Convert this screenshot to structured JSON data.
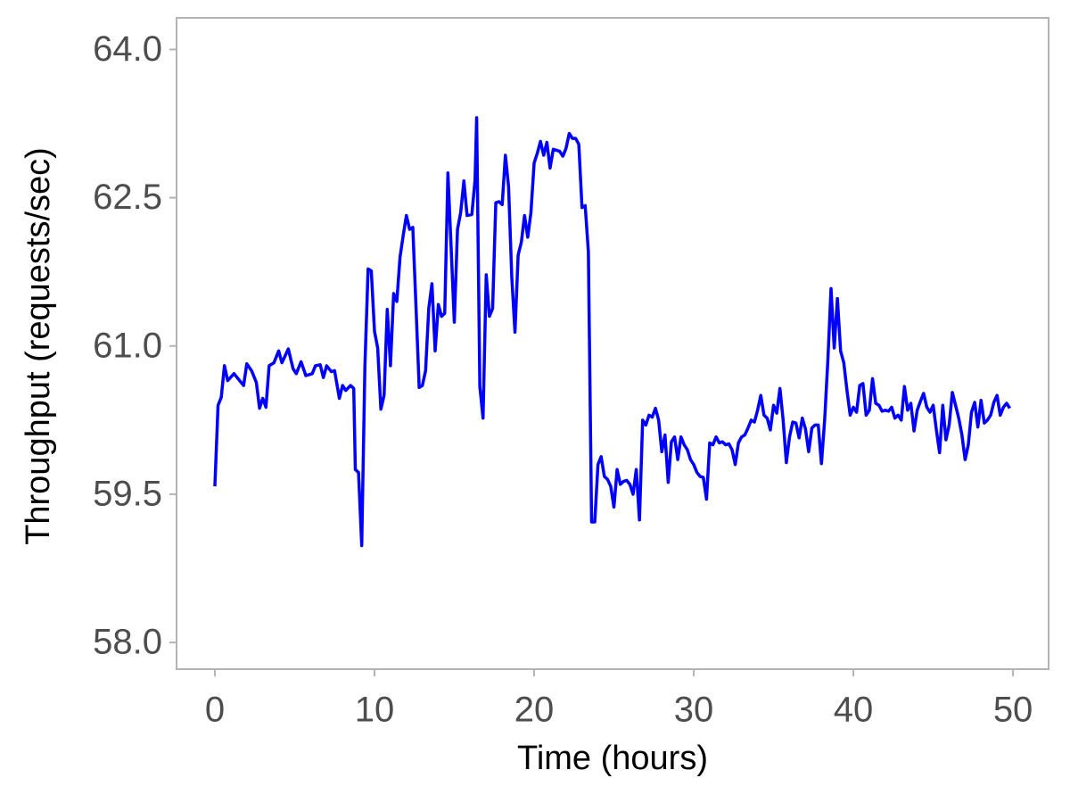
{
  "chart_data": {
    "type": "line",
    "x_label": "Time (hours)",
    "y_label": "Throughput (requests/sec)",
    "x": [
      0,
      0.2,
      0.4,
      0.6,
      0.8,
      1.2,
      1.8,
      2.0,
      2.3,
      2.6,
      2.8,
      3.0,
      3.2,
      3.4,
      3.7,
      4.0,
      4.2,
      4.6,
      4.9,
      5.1,
      5.4,
      5.7,
      6.1,
      6.3,
      6.6,
      6.8,
      7.0,
      7.3,
      7.5,
      7.8,
      8.0,
      8.2,
      8.5,
      8.7,
      8.8,
      9.0,
      9.2,
      9.4,
      9.6,
      9.8,
      10.0,
      10.2,
      10.4,
      10.6,
      10.8,
      11.0,
      11.2,
      11.4,
      11.6,
      11.8,
      12.0,
      12.2,
      12.4,
      12.6,
      12.8,
      13.0,
      13.2,
      13.4,
      13.6,
      13.8,
      14.0,
      14.2,
      14.4,
      14.6,
      14.8,
      15.0,
      15.2,
      15.4,
      15.6,
      15.8,
      16.1,
      16.3,
      16.4,
      16.6,
      16.8,
      17.0,
      17.2,
      17.4,
      17.6,
      17.8,
      18.0,
      18.2,
      18.4,
      18.6,
      18.8,
      19.0,
      19.2,
      19.4,
      19.6,
      19.8,
      20.0,
      20.2,
      20.4,
      20.6,
      20.8,
      21.0,
      21.2,
      21.4,
      21.6,
      21.8,
      22.0,
      22.2,
      22.4,
      22.6,
      22.8,
      23.0,
      23.2,
      23.4,
      23.6,
      23.8,
      24.0,
      24.2,
      24.4,
      24.6,
      24.8,
      25.0,
      25.2,
      25.4,
      25.6,
      25.8,
      26.0,
      26.2,
      26.4,
      26.6,
      26.8,
      27.0,
      27.2,
      27.4,
      27.6,
      27.8,
      28.0,
      28.2,
      28.4,
      28.6,
      28.8,
      29.0,
      29.2,
      29.4,
      29.6,
      29.8,
      30.0,
      30.2,
      30.4,
      30.6,
      30.8,
      31.0,
      31.2,
      31.4,
      31.6,
      31.8,
      32.0,
      32.2,
      32.4,
      32.6,
      32.8,
      33.0,
      33.2,
      33.4,
      33.6,
      33.8,
      34.0,
      34.2,
      34.4,
      34.6,
      34.8,
      35.0,
      35.2,
      35.4,
      35.6,
      35.8,
      36.0,
      36.2,
      36.4,
      36.6,
      36.8,
      37.0,
      37.2,
      37.4,
      37.6,
      37.8,
      38.0,
      38.2,
      38.4,
      38.6,
      38.8,
      39.0,
      39.2,
      39.4,
      39.6,
      39.8,
      40.0,
      40.2,
      40.4,
      40.6,
      40.8,
      41.0,
      41.2,
      41.4,
      41.6,
      41.8,
      42.0,
      42.2,
      42.4,
      42.6,
      42.8,
      43.0,
      43.2,
      43.4,
      43.6,
      43.8,
      44.0,
      44.2,
      44.4,
      44.6,
      44.8,
      45.0,
      45.2,
      45.4,
      45.6,
      45.8,
      46.0,
      46.2,
      46.4,
      46.6,
      46.8,
      47.0,
      47.2,
      47.4,
      47.6,
      47.8,
      48.0,
      48.2,
      48.4,
      48.6,
      48.8,
      49.0,
      49.2,
      49.4,
      49.6,
      49.8
    ],
    "values": [
      59.58,
      60.4,
      60.48,
      60.8,
      60.65,
      60.72,
      60.6,
      60.82,
      60.75,
      60.63,
      60.37,
      60.47,
      60.38,
      60.8,
      60.83,
      60.95,
      60.83,
      60.97,
      60.77,
      60.72,
      60.84,
      60.7,
      60.72,
      60.8,
      60.81,
      60.68,
      60.8,
      60.74,
      60.75,
      60.47,
      60.6,
      60.55,
      60.6,
      60.57,
      59.75,
      59.72,
      58.98,
      60.8,
      61.78,
      61.76,
      61.15,
      60.98,
      60.36,
      60.5,
      61.37,
      60.8,
      61.53,
      61.45,
      61.9,
      62.12,
      62.32,
      62.18,
      62.2,
      61.4,
      60.58,
      60.6,
      60.75,
      61.38,
      61.63,
      60.95,
      61.42,
      61.3,
      61.33,
      62.75,
      62.0,
      61.24,
      62.18,
      62.35,
      62.67,
      62.32,
      62.33,
      62.68,
      63.31,
      60.59,
      60.27,
      61.72,
      61.3,
      61.38,
      62.45,
      62.46,
      62.43,
      62.93,
      62.61,
      61.7,
      61.14,
      61.92,
      62.05,
      62.32,
      62.1,
      62.35,
      62.85,
      62.95,
      63.07,
      62.93,
      63.06,
      62.8,
      62.99,
      62.98,
      62.97,
      62.92,
      63.0,
      63.15,
      63.1,
      63.1,
      63.04,
      62.4,
      62.42,
      61.95,
      59.22,
      59.22,
      59.8,
      59.88,
      59.68,
      59.65,
      59.58,
      59.37,
      59.75,
      59.6,
      59.63,
      59.64,
      59.6,
      59.5,
      59.75,
      59.24,
      60.25,
      60.2,
      60.3,
      60.28,
      60.37,
      60.25,
      59.93,
      60.1,
      59.62,
      60.03,
      60.08,
      59.85,
      60.08,
      60.0,
      59.95,
      59.85,
      59.8,
      59.72,
      59.68,
      59.67,
      59.45,
      60.02,
      60.0,
      60.08,
      60.02,
      60.03,
      60.0,
      60.01,
      59.95,
      59.8,
      60.02,
      60.08,
      60.1,
      60.17,
      60.25,
      60.23,
      60.35,
      60.5,
      60.3,
      60.27,
      60.15,
      60.4,
      60.32,
      60.57,
      60.25,
      59.82,
      60.08,
      60.23,
      60.22,
      60.07,
      60.27,
      60.16,
      59.93,
      60.17,
      60.2,
      60.2,
      59.81,
      60.25,
      60.85,
      61.58,
      60.98,
      61.48,
      60.95,
      60.83,
      60.55,
      60.3,
      60.38,
      60.33,
      60.6,
      60.62,
      60.3,
      60.35,
      60.67,
      60.42,
      60.4,
      60.34,
      60.35,
      60.34,
      60.38,
      60.27,
      60.3,
      60.25,
      60.59,
      60.35,
      60.42,
      60.14,
      60.35,
      60.44,
      60.52,
      60.38,
      60.33,
      60.4,
      60.15,
      59.92,
      60.4,
      60.05,
      60.2,
      60.53,
      60.4,
      60.27,
      60.1,
      59.85,
      60.0,
      60.33,
      60.43,
      60.18,
      60.45,
      60.22,
      60.25,
      60.3,
      60.43,
      60.5,
      60.3,
      60.38,
      60.42,
      60.37
    ],
    "color": "#0000ff",
    "xlim": [
      -2.4,
      52.23
    ],
    "ylim": [
      57.73,
      64.32
    ],
    "xticks": [
      0,
      10,
      20,
      30,
      40,
      50
    ],
    "yticks": [
      {
        "value": 58,
        "label": "58.0"
      },
      {
        "value": 59.5,
        "label": "59.5"
      },
      {
        "value": 61,
        "label": "61.0"
      },
      {
        "value": 62.5,
        "label": "62.5"
      },
      {
        "value": 64,
        "label": "64.0"
      }
    ],
    "grid": false
  }
}
